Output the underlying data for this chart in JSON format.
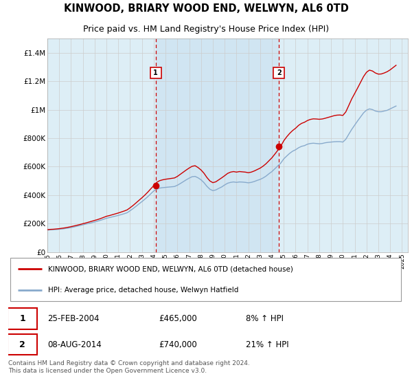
{
  "title": "KINWOOD, BRIARY WOOD END, WELWYN, AL6 0TD",
  "subtitle": "Price paid vs. HM Land Registry's House Price Index (HPI)",
  "title_fontsize": 10.5,
  "subtitle_fontsize": 9,
  "ylabel_ticks": [
    "£0",
    "£200K",
    "£400K",
    "£600K",
    "£800K",
    "£1M",
    "£1.2M",
    "£1.4M"
  ],
  "ytick_values": [
    0,
    200000,
    400000,
    600000,
    800000,
    1000000,
    1200000,
    1400000
  ],
  "ylim": [
    0,
    1500000
  ],
  "xlim_start": 1995.0,
  "xlim_end": 2025.5,
  "grid_color": "#cccccc",
  "background_color": "#ddeef6",
  "plot_bg": "#ddeef6",
  "shade_color": "#c8dff0",
  "red_line_color": "#cc0000",
  "blue_line_color": "#88aacc",
  "sale1_x": 2004.15,
  "sale1_y": 465000,
  "sale1_label": "1",
  "sale2_x": 2014.6,
  "sale2_y": 740000,
  "sale2_label": "2",
  "dashed_line_color": "#cc0000",
  "legend_line1": "KINWOOD, BRIARY WOOD END, WELWYN, AL6 0TD (detached house)",
  "legend_line2": "HPI: Average price, detached house, Welwyn Hatfield",
  "table_row1": [
    "1",
    "25-FEB-2004",
    "£465,000",
    "8% ↑ HPI"
  ],
  "table_row2": [
    "2",
    "08-AUG-2014",
    "£740,000",
    "21% ↑ HPI"
  ],
  "footer": "Contains HM Land Registry data © Crown copyright and database right 2024.\nThis data is licensed under the Open Government Licence v3.0.",
  "hpi_x": [
    1995.0,
    1995.25,
    1995.5,
    1995.75,
    1996.0,
    1996.25,
    1996.5,
    1996.75,
    1997.0,
    1997.25,
    1997.5,
    1997.75,
    1998.0,
    1998.25,
    1998.5,
    1998.75,
    1999.0,
    1999.25,
    1999.5,
    1999.75,
    2000.0,
    2000.25,
    2000.5,
    2000.75,
    2001.0,
    2001.25,
    2001.5,
    2001.75,
    2002.0,
    2002.25,
    2002.5,
    2002.75,
    2003.0,
    2003.25,
    2003.5,
    2003.75,
    2004.0,
    2004.25,
    2004.5,
    2004.75,
    2005.0,
    2005.25,
    2005.5,
    2005.75,
    2006.0,
    2006.25,
    2006.5,
    2006.75,
    2007.0,
    2007.25,
    2007.5,
    2007.75,
    2008.0,
    2008.25,
    2008.5,
    2008.75,
    2009.0,
    2009.25,
    2009.5,
    2009.75,
    2010.0,
    2010.25,
    2010.5,
    2010.75,
    2011.0,
    2011.25,
    2011.5,
    2011.75,
    2012.0,
    2012.25,
    2012.5,
    2012.75,
    2013.0,
    2013.25,
    2013.5,
    2013.75,
    2014.0,
    2014.25,
    2014.5,
    2014.75,
    2015.0,
    2015.25,
    2015.5,
    2015.75,
    2016.0,
    2016.25,
    2016.5,
    2016.75,
    2017.0,
    2017.25,
    2017.5,
    2017.75,
    2018.0,
    2018.25,
    2018.5,
    2018.75,
    2019.0,
    2019.25,
    2019.5,
    2019.75,
    2020.0,
    2020.25,
    2020.5,
    2020.75,
    2021.0,
    2021.25,
    2021.5,
    2021.75,
    2022.0,
    2022.25,
    2022.5,
    2022.75,
    2023.0,
    2023.25,
    2023.5,
    2023.75,
    2024.0,
    2024.25,
    2024.5
  ],
  "hpi_y": [
    155000,
    157000,
    158000,
    159000,
    161000,
    163000,
    166000,
    169000,
    173000,
    177000,
    182000,
    187000,
    192000,
    197000,
    202000,
    207000,
    212000,
    218000,
    224000,
    231000,
    238000,
    243000,
    248000,
    253000,
    258000,
    264000,
    270000,
    277000,
    291000,
    306000,
    322000,
    339000,
    355000,
    372000,
    390000,
    410000,
    430000,
    442000,
    450000,
    453000,
    455000,
    457000,
    459000,
    461000,
    470000,
    482000,
    495000,
    508000,
    520000,
    530000,
    532000,
    522000,
    508000,
    488000,
    462000,
    442000,
    432000,
    437000,
    448000,
    458000,
    472000,
    484000,
    490000,
    493000,
    490000,
    493000,
    492000,
    490000,
    487000,
    490000,
    496000,
    504000,
    511000,
    521000,
    534000,
    551000,
    566000,
    586000,
    606000,
    626000,
    655000,
    675000,
    694000,
    709000,
    719000,
    733000,
    743000,
    748000,
    758000,
    763000,
    765000,
    763000,
    761000,
    763000,
    768000,
    771000,
    773000,
    775000,
    776000,
    776000,
    773000,
    793000,
    828000,
    862000,
    892000,
    922000,
    950000,
    978000,
    997000,
    1006000,
    1001000,
    991000,
    986000,
    986000,
    991000,
    996000,
    1006000,
    1016000,
    1026000
  ],
  "red_x": [
    1995.0,
    1995.25,
    1995.5,
    1995.75,
    1996.0,
    1996.25,
    1996.5,
    1996.75,
    1997.0,
    1997.25,
    1997.5,
    1997.75,
    1998.0,
    1998.25,
    1998.5,
    1998.75,
    1999.0,
    1999.25,
    1999.5,
    1999.75,
    2000.0,
    2000.25,
    2000.5,
    2000.75,
    2001.0,
    2001.25,
    2001.5,
    2001.75,
    2002.0,
    2002.25,
    2002.5,
    2002.75,
    2003.0,
    2003.25,
    2003.5,
    2003.75,
    2004.0,
    2004.25,
    2004.5,
    2004.75,
    2005.0,
    2005.25,
    2005.5,
    2005.75,
    2006.0,
    2006.25,
    2006.5,
    2006.75,
    2007.0,
    2007.25,
    2007.5,
    2007.75,
    2008.0,
    2008.25,
    2008.5,
    2008.75,
    2009.0,
    2009.25,
    2009.5,
    2009.75,
    2010.0,
    2010.25,
    2010.5,
    2010.75,
    2011.0,
    2011.25,
    2011.5,
    2011.75,
    2012.0,
    2012.25,
    2012.5,
    2012.75,
    2013.0,
    2013.25,
    2013.5,
    2013.75,
    2014.0,
    2014.25,
    2014.5,
    2014.75,
    2015.0,
    2015.25,
    2015.5,
    2015.75,
    2016.0,
    2016.25,
    2016.5,
    2016.75,
    2017.0,
    2017.25,
    2017.5,
    2017.75,
    2018.0,
    2018.25,
    2018.5,
    2018.75,
    2019.0,
    2019.25,
    2019.5,
    2019.75,
    2020.0,
    2020.25,
    2020.5,
    2020.75,
    2021.0,
    2021.25,
    2021.5,
    2021.75,
    2022.0,
    2022.25,
    2022.5,
    2022.75,
    2023.0,
    2023.25,
    2023.5,
    2023.75,
    2024.0,
    2024.25,
    2024.5
  ],
  "red_y": [
    158000,
    160000,
    161000,
    163000,
    165000,
    168000,
    171000,
    175000,
    179000,
    184000,
    189000,
    194000,
    200000,
    205000,
    211000,
    217000,
    223000,
    229000,
    236000,
    244000,
    252000,
    257000,
    263000,
    269000,
    275000,
    282000,
    289000,
    297000,
    312000,
    328000,
    346000,
    364000,
    382000,
    401000,
    422000,
    445000,
    467000,
    490000,
    502000,
    508000,
    512000,
    515000,
    518000,
    521000,
    532000,
    547000,
    562000,
    577000,
    591000,
    603000,
    607000,
    594000,
    577000,
    554000,
    524000,
    500000,
    488000,
    494000,
    508000,
    522000,
    537000,
    553000,
    562000,
    566000,
    562000,
    566000,
    564000,
    562000,
    558000,
    562000,
    570000,
    580000,
    590000,
    604000,
    621000,
    642000,
    663000,
    689000,
    716000,
    745000,
    782000,
    810000,
    834000,
    854000,
    870000,
    890000,
    904000,
    912000,
    924000,
    932000,
    936000,
    935000,
    933000,
    935000,
    940000,
    946000,
    952000,
    958000,
    962000,
    963000,
    960000,
    985000,
    1030000,
    1076000,
    1114000,
    1153000,
    1193000,
    1233000,
    1263000,
    1278000,
    1272000,
    1258000,
    1250000,
    1251000,
    1258000,
    1267000,
    1280000,
    1296000,
    1312000
  ]
}
